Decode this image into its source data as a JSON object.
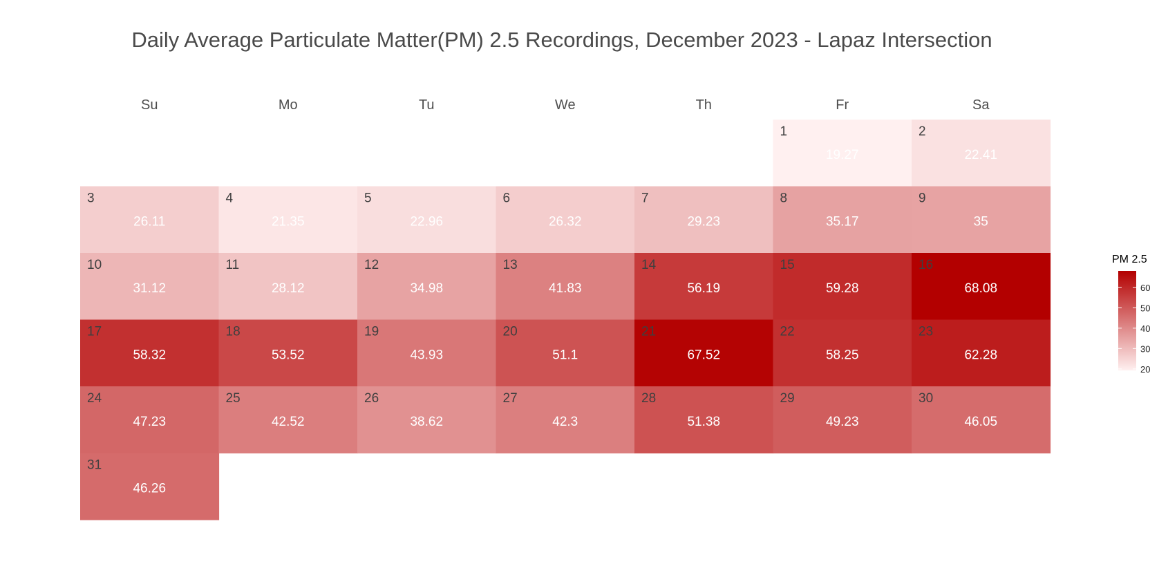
{
  "chart_data": {
    "type": "heatmap",
    "title": "Daily Average Particulate Matter(PM) 2.5 Recordings, December 2023 - Lapaz Intersection",
    "weekdays": [
      "Su",
      "Mo",
      "Tu",
      "We",
      "Th",
      "Fr",
      "Sa"
    ],
    "first_weekday_index": 5,
    "days": [
      {
        "day": "1",
        "value": 19.27
      },
      {
        "day": "2",
        "value": 22.41
      },
      {
        "day": "3",
        "value": 26.11
      },
      {
        "day": "4",
        "value": 21.35
      },
      {
        "day": "5",
        "value": 22.96
      },
      {
        "day": "6",
        "value": 26.32
      },
      {
        "day": "7",
        "value": 29.23
      },
      {
        "day": "8",
        "value": 35.17
      },
      {
        "day": "9",
        "value": 35
      },
      {
        "day": "10",
        "value": 31.12
      },
      {
        "day": "11",
        "value": 28.12
      },
      {
        "day": "12",
        "value": 34.98
      },
      {
        "day": "13",
        "value": 41.83
      },
      {
        "day": "14",
        "value": 56.19
      },
      {
        "day": "15",
        "value": 59.28
      },
      {
        "day": "16",
        "value": 68.08
      },
      {
        "day": "17",
        "value": 58.32
      },
      {
        "day": "18",
        "value": 53.52
      },
      {
        "day": "19",
        "value": 43.93
      },
      {
        "day": "20",
        "value": 51.1
      },
      {
        "day": "21",
        "value": 67.52
      },
      {
        "day": "22",
        "value": 58.25
      },
      {
        "day": "23",
        "value": 62.28
      },
      {
        "day": "24",
        "value": 47.23
      },
      {
        "day": "25",
        "value": 42.52
      },
      {
        "day": "26",
        "value": 38.62
      },
      {
        "day": "27",
        "value": 42.3
      },
      {
        "day": "28",
        "value": 51.38
      },
      {
        "day": "29",
        "value": 49.23
      },
      {
        "day": "30",
        "value": 46.05
      },
      {
        "day": "31",
        "value": 46.26
      }
    ],
    "legend": {
      "title": "PM 2.5",
      "ticks": [
        20,
        30,
        40,
        50,
        60
      ],
      "range": [
        19.27,
        68.08
      ],
      "colors": {
        "low": "#fff0f0",
        "high": "#b30000"
      }
    }
  }
}
